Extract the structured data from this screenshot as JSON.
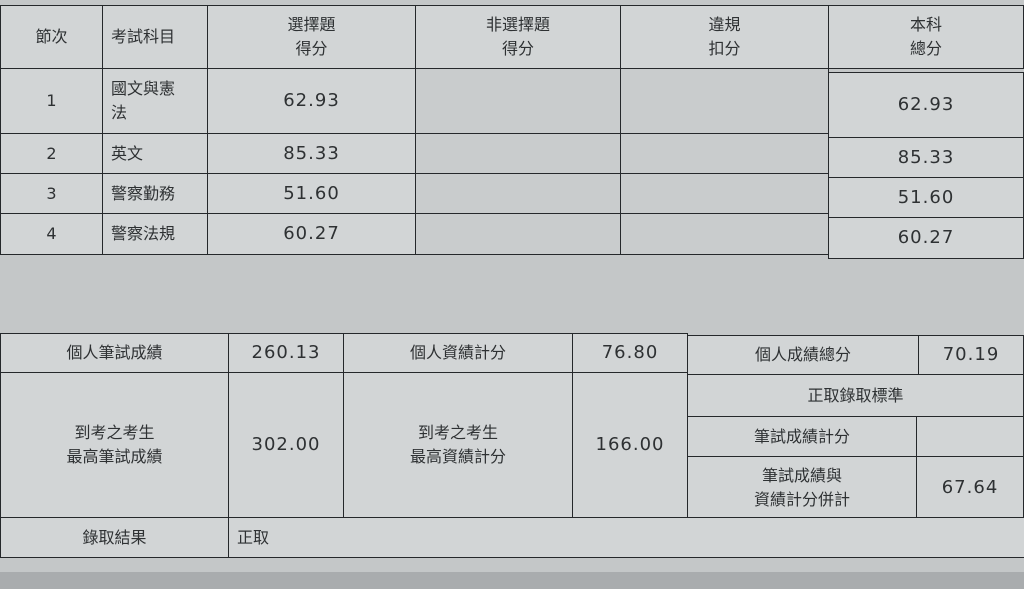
{
  "subjects_table": {
    "headers": [
      "節次",
      "考試科目",
      "選擇題\n得分",
      "非選擇題\n得分",
      "違規\n扣分",
      "本科\n總分"
    ],
    "rows": [
      {
        "no": "1",
        "subject": "國文與憲法",
        "mc_score": "62.93",
        "non_mc_score": "",
        "deduction": "",
        "total": "62.93"
      },
      {
        "no": "2",
        "subject": "英文",
        "mc_score": "85.33",
        "non_mc_score": "",
        "deduction": "",
        "total": "85.33"
      },
      {
        "no": "3",
        "subject": "警察勤務",
        "mc_score": "51.60",
        "non_mc_score": "",
        "deduction": "",
        "total": "51.60"
      },
      {
        "no": "4",
        "subject": "警察法規",
        "mc_score": "60.27",
        "non_mc_score": "",
        "deduction": "",
        "total": "60.27"
      }
    ]
  },
  "summary": {
    "written_label": "個人筆試成績",
    "written_value": "260.13",
    "record_label": "個人資績計分",
    "record_value": "76.80",
    "total_label": "個人成績總分",
    "total_value": "70.19",
    "max_written_label_1": "到考之考生",
    "max_written_label_2": "最高筆試成績",
    "max_written_value": "302.00",
    "max_record_label_1": "到考之考生",
    "max_record_label_2": "最高資績計分",
    "max_record_value": "166.00",
    "standard_label": "正取錄取標準",
    "std_written_label": "筆試成績計分",
    "std_written_value": "",
    "std_combined_label_1": "筆試成績與",
    "std_combined_label_2": "資績計分併計",
    "std_combined_value": "67.64",
    "result_label": "錄取結果",
    "result_value": "正取"
  }
}
